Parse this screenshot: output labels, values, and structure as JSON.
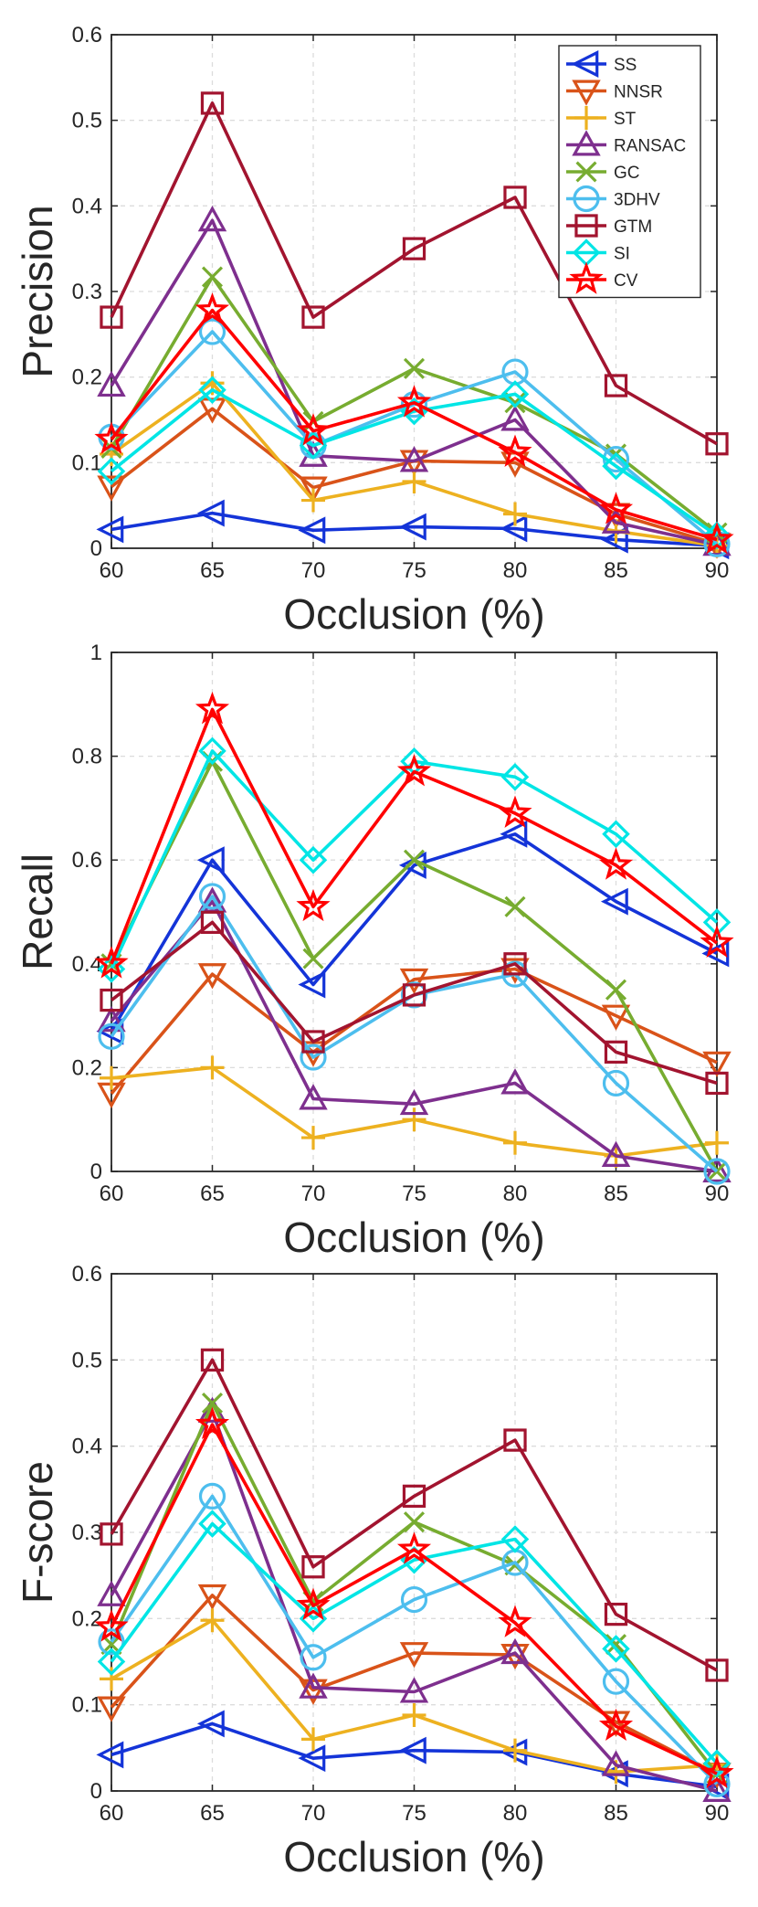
{
  "chart_data": [
    {
      "type": "line",
      "title": "",
      "xlabel": "Occlusion (%)",
      "ylabel": "Precision",
      "x": [
        60,
        65,
        70,
        75,
        80,
        85,
        90
      ],
      "xticks": [
        "60",
        "65",
        "70",
        "75",
        "80",
        "85",
        "90"
      ],
      "ylim": [
        0,
        0.6
      ],
      "yticks": [
        "0",
        "0.1",
        "0.2",
        "0.3",
        "0.4",
        "0.5",
        "0.6"
      ],
      "grid": true,
      "legend": "top-right",
      "series": [
        {
          "name": "SS",
          "values": [
            0.022,
            0.041,
            0.021,
            0.025,
            0.023,
            0.01,
            0.003
          ]
        },
        {
          "name": "NNSR",
          "values": [
            0.072,
            0.163,
            0.071,
            0.102,
            0.1,
            0.04,
            0.005
          ]
        },
        {
          "name": "ST",
          "values": [
            0.11,
            0.193,
            0.056,
            0.078,
            0.04,
            0.02,
            0.003
          ]
        },
        {
          "name": "RANSAC",
          "values": [
            0.19,
            0.383,
            0.108,
            0.102,
            0.15,
            0.03,
            0.004
          ]
        },
        {
          "name": "GC",
          "values": [
            0.117,
            0.317,
            0.148,
            0.21,
            0.17,
            0.11,
            0.018
          ]
        },
        {
          "name": "3DHV",
          "values": [
            0.13,
            0.253,
            0.12,
            0.168,
            0.206,
            0.104,
            0.005
          ]
        },
        {
          "name": "GTM",
          "values": [
            0.27,
            0.52,
            0.27,
            0.35,
            0.41,
            0.19,
            0.122
          ]
        },
        {
          "name": "SI",
          "values": [
            0.09,
            0.185,
            0.12,
            0.16,
            0.18,
            0.096,
            0.015
          ]
        },
        {
          "name": "CV",
          "values": [
            0.127,
            0.278,
            0.137,
            0.17,
            0.112,
            0.045,
            0.01
          ]
        }
      ]
    },
    {
      "type": "line",
      "title": "",
      "xlabel": "Occlusion (%)",
      "ylabel": "Recall",
      "x": [
        60,
        65,
        70,
        75,
        80,
        85,
        90
      ],
      "xticks": [
        "60",
        "65",
        "70",
        "75",
        "80",
        "85",
        "90"
      ],
      "ylim": [
        0,
        1
      ],
      "yticks": [
        "0",
        "0.2",
        "0.4",
        "0.6",
        "0.8",
        "1"
      ],
      "grid": true,
      "legend": "none",
      "series": [
        {
          "name": "SS",
          "values": [
            0.27,
            0.6,
            0.36,
            0.59,
            0.65,
            0.52,
            0.42
          ]
        },
        {
          "name": "NNSR",
          "values": [
            0.15,
            0.38,
            0.23,
            0.37,
            0.39,
            0.3,
            0.21
          ]
        },
        {
          "name": "ST",
          "values": [
            0.18,
            0.2,
            0.065,
            0.1,
            0.055,
            0.03,
            0.055
          ]
        },
        {
          "name": "RANSAC",
          "values": [
            0.29,
            0.52,
            0.14,
            0.13,
            0.17,
            0.03,
            0.0
          ]
        },
        {
          "name": "GC",
          "values": [
            0.4,
            0.79,
            0.41,
            0.6,
            0.51,
            0.35,
            0.0
          ]
        },
        {
          "name": "3DHV",
          "values": [
            0.26,
            0.53,
            0.22,
            0.34,
            0.38,
            0.17,
            0.0
          ]
        },
        {
          "name": "GTM",
          "values": [
            0.33,
            0.48,
            0.25,
            0.34,
            0.4,
            0.23,
            0.17
          ]
        },
        {
          "name": "SI",
          "values": [
            0.39,
            0.81,
            0.6,
            0.79,
            0.76,
            0.65,
            0.48
          ]
        },
        {
          "name": "CV",
          "values": [
            0.4,
            0.89,
            0.51,
            0.77,
            0.69,
            0.59,
            0.44
          ]
        }
      ]
    },
    {
      "type": "line",
      "title": "",
      "xlabel": "Occlusion (%)",
      "ylabel": "F-score",
      "x": [
        60,
        65,
        70,
        75,
        80,
        85,
        90
      ],
      "xticks": [
        "60",
        "65",
        "70",
        "75",
        "80",
        "85",
        "90"
      ],
      "ylim": [
        0,
        0.6
      ],
      "yticks": [
        "0",
        "0.1",
        "0.2",
        "0.3",
        "0.4",
        "0.5",
        "0.6"
      ],
      "grid": true,
      "legend": "none",
      "series": [
        {
          "name": "SS",
          "values": [
            0.042,
            0.078,
            0.038,
            0.047,
            0.045,
            0.02,
            0.005
          ]
        },
        {
          "name": "NNSR",
          "values": [
            0.097,
            0.227,
            0.117,
            0.16,
            0.158,
            0.08,
            0.02
          ]
        },
        {
          "name": "ST",
          "values": [
            0.13,
            0.198,
            0.06,
            0.088,
            0.047,
            0.022,
            0.03
          ]
        },
        {
          "name": "RANSAC",
          "values": [
            0.227,
            0.44,
            0.12,
            0.115,
            0.16,
            0.03,
            0.0
          ]
        },
        {
          "name": "GC",
          "values": [
            0.17,
            0.45,
            0.22,
            0.312,
            0.262,
            0.17,
            0.02
          ]
        },
        {
          "name": "3DHV",
          "values": [
            0.173,
            0.342,
            0.155,
            0.222,
            0.265,
            0.127,
            0.008
          ]
        },
        {
          "name": "GTM",
          "values": [
            0.298,
            0.5,
            0.26,
            0.342,
            0.407,
            0.205,
            0.14
          ]
        },
        {
          "name": "SI",
          "values": [
            0.15,
            0.31,
            0.2,
            0.268,
            0.292,
            0.165,
            0.032
          ]
        },
        {
          "name": "CV",
          "values": [
            0.19,
            0.425,
            0.215,
            0.28,
            0.195,
            0.075,
            0.02
          ]
        }
      ]
    }
  ],
  "series_styles": [
    {
      "name": "SS",
      "color": "#1434d8",
      "marker": "triangle-left"
    },
    {
      "name": "NNSR",
      "color": "#d95319",
      "marker": "triangle-down"
    },
    {
      "name": "ST",
      "color": "#edb120",
      "marker": "plus"
    },
    {
      "name": "RANSAC",
      "color": "#7e2f8e",
      "marker": "triangle-up"
    },
    {
      "name": "GC",
      "color": "#77ac30",
      "marker": "x"
    },
    {
      "name": "3DHV",
      "color": "#4dbeee",
      "marker": "circle"
    },
    {
      "name": "GTM",
      "color": "#a2142f",
      "marker": "square"
    },
    {
      "name": "SI",
      "color": "#00e5e5",
      "marker": "diamond"
    },
    {
      "name": "CV",
      "color": "#ff0000",
      "marker": "star"
    }
  ]
}
